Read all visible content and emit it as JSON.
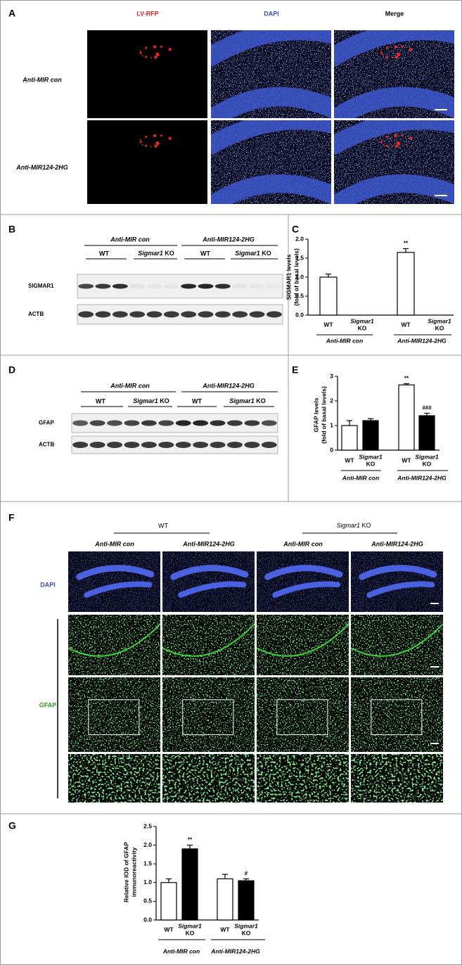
{
  "panel_a": {
    "label": "A",
    "columns": [
      "LV-RFP",
      "DAPI",
      "Merge"
    ],
    "rows": [
      "Anti-MIR con",
      "Anti-MIR124-2HG"
    ]
  },
  "panel_b": {
    "label": "B",
    "groups": [
      "Anti-MIR con",
      "Anti-MIR124-2HG"
    ],
    "genotypes": [
      "WT",
      {
        "gene": "Sigmar1",
        "suffix": "KO"
      }
    ],
    "blots": [
      "SIGMAR1",
      "ACTB"
    ]
  },
  "panel_d": {
    "label": "D",
    "groups": [
      "Anti-MIR con",
      "Anti-MIR124-2HG"
    ],
    "genotypes": [
      "WT",
      {
        "gene": "Sigmar1",
        "suffix": "KO"
      }
    ],
    "blots": [
      "GFAP",
      "ACTB"
    ]
  },
  "panel_f": {
    "label": "F",
    "genotypes": [
      "WT",
      {
        "gene": "Sigmar1",
        "suffix": "KO"
      }
    ],
    "treatments": [
      "Anti-MIR con",
      "Anti-MIR124-2HG",
      "Anti-MIR con",
      "Anti-MIR124-2HG"
    ],
    "stains": [
      "DAPI",
      "GFAP"
    ]
  },
  "chart_data": [
    {
      "type": "bar",
      "panel": "C",
      "ylabel": [
        "SIGMAR1 levels",
        "(fold of basal levels)"
      ],
      "categories": [
        "WT",
        {
          "gene": "Sigmar1",
          "suffix": "KO"
        },
        "WT",
        {
          "gene": "Sigmar1",
          "suffix": "KO"
        }
      ],
      "groups": [
        "Anti-MIR con",
        "Anti-MIR124-2HG"
      ],
      "values": [
        1.0,
        null,
        1.65,
        null
      ],
      "errors": [
        0.08,
        null,
        0.1,
        null
      ],
      "colors": [
        "#ffffff",
        "#000000",
        "#ffffff",
        "#000000"
      ],
      "annotations": [
        null,
        null,
        "**",
        null
      ],
      "ylim": [
        0,
        2
      ],
      "yticks": [
        {
          "value": 0,
          "label": "0.0"
        },
        {
          "value": 0.5,
          "label": "0.5"
        },
        {
          "value": 1,
          "label": "1.0"
        },
        {
          "value": 1.5,
          "label": "1.5"
        },
        {
          "value": 2,
          "label": "2.0"
        }
      ]
    },
    {
      "type": "bar",
      "panel": "E",
      "ylabel": [
        "GFAP levels",
        "(fold of basal levels)"
      ],
      "categories": [
        "WT",
        {
          "gene": "Sigmar1",
          "suffix": "KO"
        },
        "WT",
        {
          "gene": "Sigmar1",
          "suffix": "KO"
        }
      ],
      "groups": [
        "Anti-MIR con",
        "Anti-MIR124-2HG"
      ],
      "values": [
        1.0,
        1.2,
        2.65,
        1.4
      ],
      "errors": [
        0.2,
        0.08,
        0.05,
        0.1
      ],
      "colors": [
        "#ffffff",
        "#000000",
        "#ffffff",
        "#000000"
      ],
      "annotations": [
        null,
        null,
        "**",
        "###"
      ],
      "ylim": [
        0,
        3
      ],
      "yticks": [
        0,
        1,
        2,
        3
      ]
    },
    {
      "type": "bar",
      "panel": "G",
      "ylabel": [
        "Relative IOD of GFAP",
        "immunoreactivity"
      ],
      "categories": [
        "WT",
        {
          "gene": "Sigmar1",
          "suffix": "KO"
        },
        "WT",
        {
          "gene": "Sigmar1",
          "suffix": "KO"
        }
      ],
      "groups": [
        "Anti-MIR con",
        "Anti-MIR124-2HG"
      ],
      "values": [
        1.0,
        1.9,
        1.1,
        1.05
      ],
      "errors": [
        0.1,
        0.1,
        0.12,
        0.05
      ],
      "colors": [
        "#ffffff",
        "#000000",
        "#ffffff",
        "#000000"
      ],
      "annotations": [
        null,
        "**",
        null,
        "#"
      ],
      "ylim": [
        0,
        2.5
      ],
      "yticks": [
        {
          "value": 0,
          "label": "0.0"
        },
        {
          "value": 0.5,
          "label": "0.5"
        },
        {
          "value": 1,
          "label": "1.0"
        },
        {
          "value": 1.5,
          "label": "1.5"
        },
        {
          "value": 2,
          "label": "2.0"
        },
        {
          "value": 2.5,
          "label": "2.5"
        }
      ]
    }
  ]
}
